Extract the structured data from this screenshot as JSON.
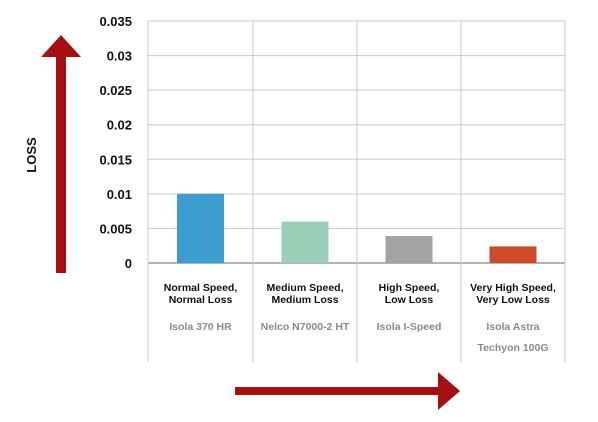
{
  "chart_data": {
    "type": "bar",
    "ylabel": "LOSS",
    "ylim": [
      0,
      0.035
    ],
    "yticks": [
      "0",
      "0.005",
      "0.01",
      "0.015",
      "0.02",
      "0.025",
      "0.03",
      "0.035"
    ],
    "grid": true,
    "categories": [
      {
        "line1": "Normal Speed,",
        "line2": "Normal Loss",
        "product": [
          "Isola 370 HR"
        ]
      },
      {
        "line1": "Medium Speed,",
        "line2": "Medium Loss",
        "product": [
          "Nelco N7000-2 HT"
        ]
      },
      {
        "line1": "High Speed,",
        "line2": "Low Loss",
        "product": [
          "Isola I-Speed"
        ]
      },
      {
        "line1": "Very High Speed,",
        "line2": "Very Low Loss",
        "product": [
          "Isola Astra",
          "Techyon 100G"
        ]
      }
    ],
    "values": [
      0.01,
      0.006,
      0.0039,
      0.0024
    ],
    "colors": [
      "#3d9dd0",
      "#9ccfb9",
      "#a3a3a3",
      "#cf4a2b"
    ],
    "arrow_color": "#a50f12",
    "grid_color": "#c8c8c8"
  }
}
